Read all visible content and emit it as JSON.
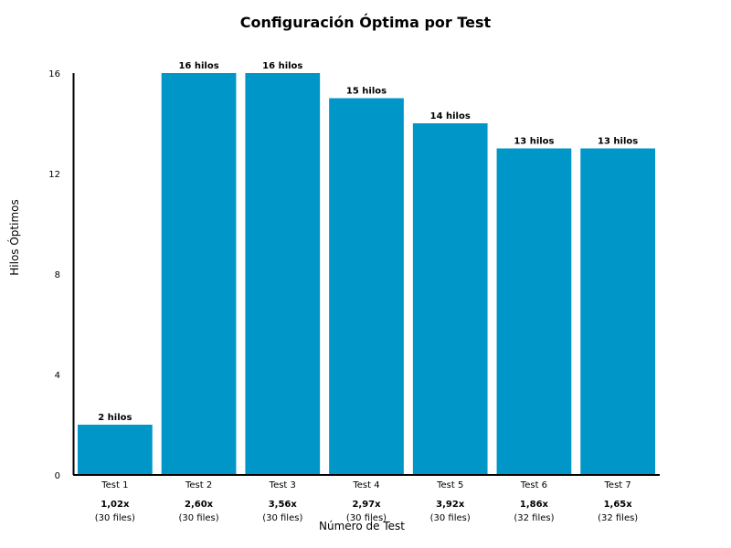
{
  "chart_data": {
    "type": "bar",
    "title": "Configuración Óptima por Test",
    "xlabel": "Número de Test",
    "ylabel": "Hilos Óptimos",
    "ylim": [
      0,
      16
    ],
    "yticks": [
      "0",
      "4",
      "8",
      "12",
      "16"
    ],
    "grid": false,
    "bar_color": "#0096c7",
    "categories": [
      "Test 1",
      "Test 2",
      "Test 3",
      "Test 4",
      "Test 5",
      "Test 6",
      "Test 7"
    ],
    "values": [
      2,
      16,
      16,
      15,
      14,
      13,
      13
    ],
    "data_labels": [
      "2 hilos",
      "16 hilos",
      "16 hilos",
      "15 hilos",
      "14 hilos",
      "13 hilos",
      "13 hilos"
    ],
    "speedups": [
      "1,02x",
      "2,60x",
      "3,56x",
      "2,97x",
      "3,92x",
      "1,86x",
      "1,65x"
    ],
    "files": [
      "(30 files)",
      "(30 files)",
      "(30 files)",
      "(30 files)",
      "(30 files)",
      "(32 files)",
      "(32 files)"
    ]
  }
}
